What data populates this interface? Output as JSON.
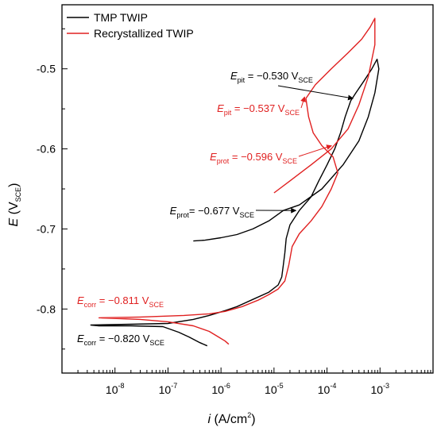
{
  "chart_data": {
    "type": "line",
    "xscale": "log",
    "xlim": [
      1e-09,
      0.01
    ],
    "ylim": [
      -0.88,
      -0.42
    ],
    "x_axis": {
      "label_base": "i",
      "label_rest": " (A/cm",
      "label_sup": "2",
      "label_close": ")",
      "ticks": [
        {
          "value": 1e-08,
          "base": "10",
          "exp": "-8"
        },
        {
          "value": 1e-07,
          "base": "10",
          "exp": "-7"
        },
        {
          "value": 1e-06,
          "base": "10",
          "exp": "-6"
        },
        {
          "value": 1e-05,
          "base": "10",
          "exp": "-5"
        },
        {
          "value": 0.0001,
          "base": "10",
          "exp": "-4"
        },
        {
          "value": 0.001,
          "base": "10",
          "exp": "-3"
        }
      ]
    },
    "y_axis": {
      "label_base": "E",
      "label_open": " (V",
      "label_sub": "SCE",
      "label_close": ")",
      "ticks": [
        {
          "value": -0.8,
          "label": "-0.8"
        },
        {
          "value": -0.7,
          "label": "-0.7"
        },
        {
          "value": -0.6,
          "label": "-0.6"
        },
        {
          "value": -0.5,
          "label": "-0.5"
        }
      ]
    },
    "legend_position": "top-left",
    "series": [
      {
        "name": "TMP TWIP",
        "color": "#000000",
        "points": [
          [
            5.5e-07,
            -0.846
          ],
          [
            4e-07,
            -0.842
          ],
          [
            2.5e-07,
            -0.835
          ],
          [
            1.6e-07,
            -0.829
          ],
          [
            8e-08,
            -0.822
          ],
          [
            2e-08,
            -0.821
          ],
          [
            5e-09,
            -0.821
          ],
          [
            3.5e-09,
            -0.82
          ],
          [
            2e-08,
            -0.819
          ],
          [
            1e-07,
            -0.818
          ],
          [
            3e-07,
            -0.813
          ],
          [
            6e-07,
            -0.808
          ],
          [
            1.2e-06,
            -0.802
          ],
          [
            2e-06,
            -0.797
          ],
          [
            4e-06,
            -0.788
          ],
          [
            8e-06,
            -0.779
          ],
          [
            1.2e-05,
            -0.77
          ],
          [
            1.4e-05,
            -0.76
          ],
          [
            1.5e-05,
            -0.745
          ],
          [
            1.6e-05,
            -0.73
          ],
          [
            1.7e-05,
            -0.712
          ],
          [
            2e-05,
            -0.695
          ],
          [
            3e-05,
            -0.677
          ],
          [
            5e-05,
            -0.66
          ],
          [
            7e-05,
            -0.64
          ],
          [
            0.0001,
            -0.62
          ],
          [
            0.00014,
            -0.6
          ],
          [
            0.00018,
            -0.58
          ],
          [
            0.00022,
            -0.56
          ],
          [
            0.00028,
            -0.54
          ],
          [
            0.00035,
            -0.53
          ],
          [
            0.0005,
            -0.515
          ],
          [
            0.0007,
            -0.5
          ],
          [
            0.00088,
            -0.488
          ],
          [
            0.00095,
            -0.5
          ],
          [
            0.0008,
            -0.53
          ],
          [
            0.0006,
            -0.56
          ],
          [
            0.0004,
            -0.59
          ],
          [
            0.0002,
            -0.62
          ],
          [
            8e-05,
            -0.65
          ],
          [
            3e-05,
            -0.67
          ],
          [
            1.5e-05,
            -0.677
          ],
          [
            8e-06,
            -0.69
          ],
          [
            4e-06,
            -0.7
          ],
          [
            2e-06,
            -0.707
          ],
          [
            1e-06,
            -0.711
          ],
          [
            5e-07,
            -0.714
          ],
          [
            3e-07,
            -0.715
          ]
        ]
      },
      {
        "name": "Recrystallized TWIP",
        "color": "#e02020",
        "points": [
          [
            1.4e-06,
            -0.844
          ],
          [
            1.2e-06,
            -0.84
          ],
          [
            9e-07,
            -0.835
          ],
          [
            6e-07,
            -0.828
          ],
          [
            3e-07,
            -0.821
          ],
          [
            1e-07,
            -0.816
          ],
          [
            3e-08,
            -0.813
          ],
          [
            5e-09,
            -0.811
          ],
          [
            3e-08,
            -0.81
          ],
          [
            2e-07,
            -0.808
          ],
          [
            6e-07,
            -0.806
          ],
          [
            1.2e-06,
            -0.803
          ],
          [
            2.5e-06,
            -0.797
          ],
          [
            5e-06,
            -0.789
          ],
          [
            8e-06,
            -0.782
          ],
          [
            1.2e-05,
            -0.775
          ],
          [
            1.6e-05,
            -0.765
          ],
          [
            1.9e-05,
            -0.745
          ],
          [
            2.2e-05,
            -0.722
          ],
          [
            3e-05,
            -0.706
          ],
          [
            5e-05,
            -0.69
          ],
          [
            8e-05,
            -0.672
          ],
          [
            0.00012,
            -0.65
          ],
          [
            0.00016,
            -0.63
          ],
          [
            0.00013,
            -0.61
          ],
          [
            8e-05,
            -0.596
          ],
          [
            5.5e-05,
            -0.58
          ],
          [
            4.5e-05,
            -0.56
          ],
          [
            4e-05,
            -0.537
          ],
          [
            6e-05,
            -0.52
          ],
          [
            0.00012,
            -0.5
          ],
          [
            0.00025,
            -0.48
          ],
          [
            0.00045,
            -0.463
          ],
          [
            0.00065,
            -0.448
          ],
          [
            0.0008,
            -0.437
          ],
          [
            0.0008,
            -0.47
          ],
          [
            0.0006,
            -0.51
          ],
          [
            0.0004,
            -0.545
          ],
          [
            0.00025,
            -0.575
          ],
          [
            0.00012,
            -0.6
          ],
          [
            5e-05,
            -0.62
          ],
          [
            2e-05,
            -0.64
          ],
          [
            1e-05,
            -0.655
          ]
        ]
      }
    ],
    "annotations": [
      {
        "series": "TMP TWIP",
        "color": "#000000",
        "sym": "E",
        "sub": "pit",
        "value": " = −0.530 V",
        "unit_sub": "SCE",
        "data_x": 0.0003,
        "data_y": -0.537,
        "anchor": "start",
        "arrow": true
      },
      {
        "series": "Recrystallized TWIP",
        "color": "#e02020",
        "sym": "E",
        "sub": "pit",
        "value": " = −0.537 V",
        "unit_sub": "SCE",
        "data_x": 7e-05,
        "data_y": -0.535,
        "anchor": "end",
        "arrow": true
      },
      {
        "series": "Recrystallized TWIP",
        "color": "#e02020",
        "sym": "E",
        "sub": "prot",
        "value": " = −0.596 V",
        "unit_sub": "SCE",
        "data_x": 0.00012,
        "data_y": -0.596,
        "anchor": "end",
        "arrow": true
      },
      {
        "series": "TMP TWIP",
        "color": "#000000",
        "sym": "E",
        "sub": "prot",
        "value": "= −0.677 V",
        "unit_sub": "SCE",
        "data_x": 2.4e-05,
        "data_y": -0.677,
        "anchor": "end",
        "arrow": true
      },
      {
        "series": "Recrystallized TWIP",
        "color": "#e02020",
        "sym": "E",
        "sub": "corr",
        "value": " = −0.811 V",
        "unit_sub": "SCE",
        "data_x": 2.5e-09,
        "data_y": -0.793,
        "anchor": "start",
        "arrow": false
      },
      {
        "series": "TMP TWIP",
        "color": "#000000",
        "sym": "E",
        "sub": "corr",
        "value": " = −0.820 V",
        "unit_sub": "SCE",
        "data_x": 3.2e-09,
        "data_y": -0.842,
        "anchor": "start",
        "arrow": false
      }
    ]
  }
}
